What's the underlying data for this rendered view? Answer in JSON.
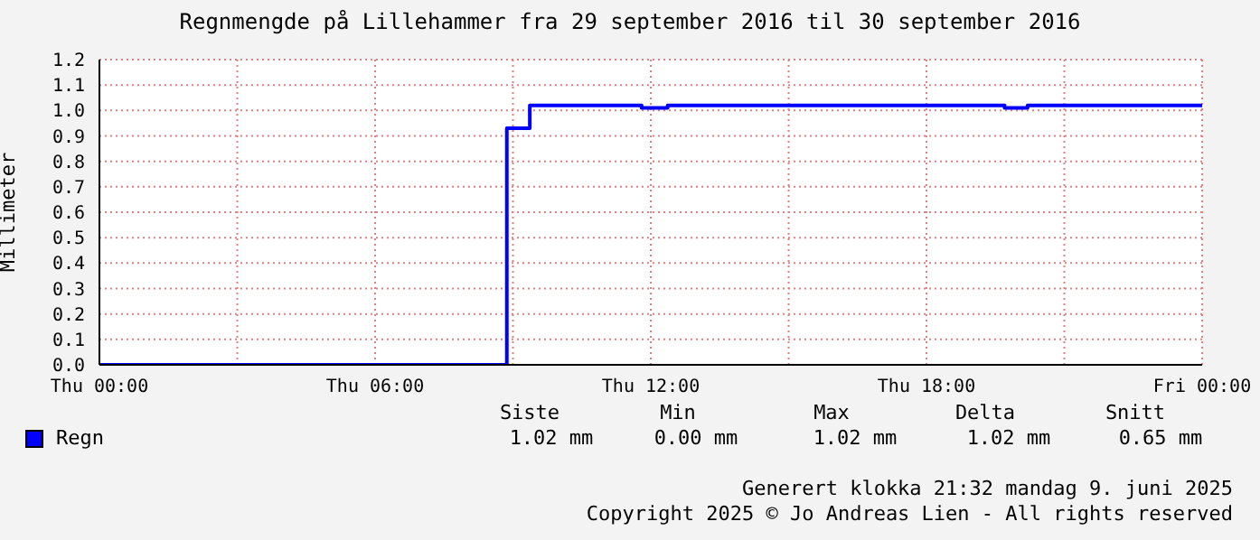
{
  "chart_data": {
    "type": "step",
    "title": "Regnmengde på Lillehammer fra 29 september 2016 til 30 september 2016",
    "ylabel": "Millimeter",
    "x": [
      "2016-09-29T00:00",
      "2016-09-29T08:52",
      "2016-09-29T09:22",
      "2016-09-29T11:48",
      "2016-09-29T12:22",
      "2016-09-29T19:42",
      "2016-09-29T20:12",
      "2016-09-30T00:00"
    ],
    "series": [
      {
        "name": "Regn",
        "color": "#0000ff",
        "values": [
          0,
          0.93,
          1.02,
          1.01,
          1.02,
          1.01,
          1.02,
          1.02
        ]
      }
    ],
    "xlim": [
      "2016-09-29T00:00",
      "2016-09-30T00:00"
    ],
    "xticks": [
      {
        "value": "2016-09-29T00:00",
        "label": "Thu 00:00"
      },
      {
        "value": "2016-09-29T03:00",
        "label": null
      },
      {
        "value": "2016-09-29T06:00",
        "label": "Thu 06:00"
      },
      {
        "value": "2016-09-29T09:00",
        "label": null
      },
      {
        "value": "2016-09-29T12:00",
        "label": "Thu 12:00"
      },
      {
        "value": "2016-09-29T15:00",
        "label": null
      },
      {
        "value": "2016-09-29T18:00",
        "label": "Thu 18:00"
      },
      {
        "value": "2016-09-29T21:00",
        "label": null
      },
      {
        "value": "2016-09-30T00:00",
        "label": "Fri 00:00"
      }
    ],
    "ylim": [
      0,
      1.2
    ],
    "yticks": [
      {
        "value": 0,
        "label": "0.0"
      },
      0.1,
      0.2,
      0.3,
      0.4,
      0.5,
      0.6,
      0.7,
      0.8,
      0.9,
      {
        "value": 1,
        "label": "1.0"
      },
      1.1,
      1.2
    ],
    "grid": true,
    "legend": "bottom left",
    "annotations": [
      "Siste",
      "Min",
      "Max",
      "Delta",
      "Snitt",
      "1.02 mm",
      "0.00 mm",
      "1.02 mm",
      "1.02 mm",
      "0.65 mm",
      "Generert klokka 21:32 mandag 9. juni 2025",
      "Copyright 2025 © Jo Andreas Lien - All rights reserved"
    ]
  }
}
